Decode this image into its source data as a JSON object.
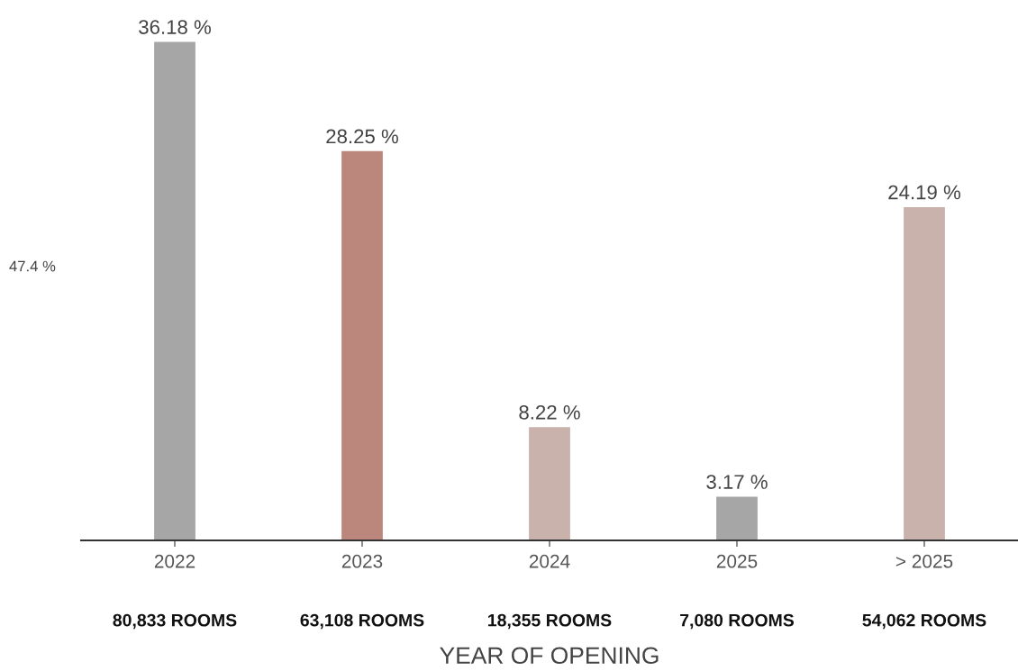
{
  "chart_data": {
    "type": "bar",
    "xlabel": "YEAR OF OPENING",
    "categories": [
      "2022",
      "2023",
      "2024",
      "2025",
      "> 2025"
    ],
    "values": [
      36.18,
      28.25,
      8.22,
      3.17,
      24.19
    ],
    "colors": [
      "#a6a6a6",
      "#bb877c",
      "#c9b2ab",
      "#a6a6a6",
      "#c9b2ab"
    ],
    "value_labels": [
      "36.18 %",
      "28.25 %",
      "8.22 %",
      "3.17 %",
      "24.19 %"
    ],
    "annotations": [
      "80,833 ROOMS",
      "63,108 ROOMS",
      "18,355 ROOMS",
      "7,080 ROOMS",
      "54,062 ROOMS",
      "47.4 %"
    ],
    "grid": false,
    "legend": false
  }
}
